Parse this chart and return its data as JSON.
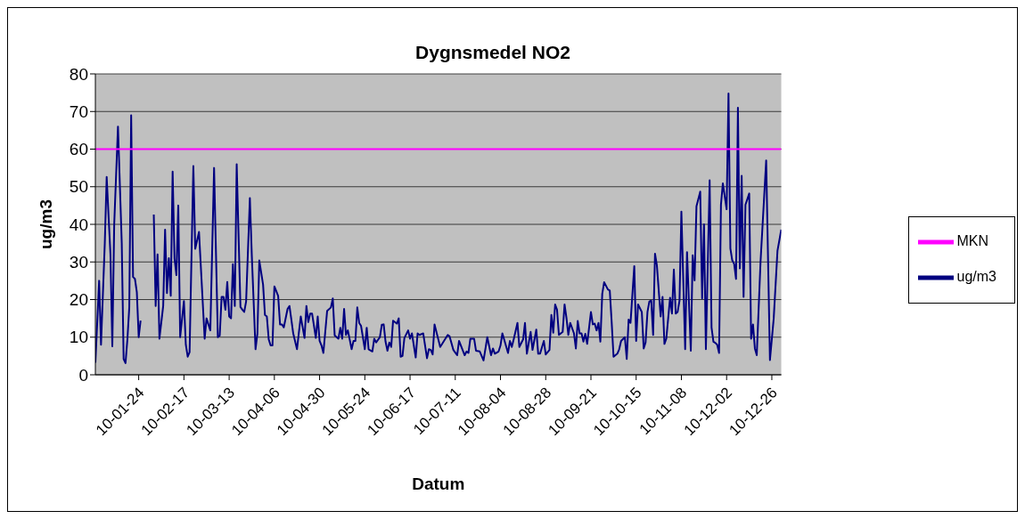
{
  "chart_data": {
    "type": "line",
    "title": "Dygnsmedel NO2",
    "xlabel": "Datum",
    "ylabel": "ug/m3",
    "ylim": [
      0,
      80
    ],
    "yticks": [
      0,
      10,
      20,
      30,
      40,
      50,
      60,
      70,
      80
    ],
    "xlim": [
      "2010-01-01",
      "2010-12-31"
    ],
    "xticks": [
      {
        "value": "2010-01-24",
        "label": "10-01-24"
      },
      {
        "value": "2010-02-17",
        "label": "10-02-17"
      },
      {
        "value": "2010-03-13",
        "label": "10-03-13"
      },
      {
        "value": "2010-04-06",
        "label": "10-04-06"
      },
      {
        "value": "2010-04-30",
        "label": "10-04-30"
      },
      {
        "value": "2010-05-24",
        "label": "10-05-24"
      },
      {
        "value": "2010-06-17",
        "label": "10-06-17"
      },
      {
        "value": "2010-07-11",
        "label": "10-07-11"
      },
      {
        "value": "2010-08-04",
        "label": "10-08-04"
      },
      {
        "value": "2010-08-28",
        "label": "10-08-28"
      },
      {
        "value": "2010-09-21",
        "label": "10-09-21"
      },
      {
        "value": "2010-10-15",
        "label": "10-10-15"
      },
      {
        "value": "2010-11-08",
        "label": "10-11-08"
      },
      {
        "value": "2010-12-02",
        "label": "10-12-02"
      },
      {
        "value": "2010-12-26",
        "label": "10-12-26"
      }
    ],
    "grid": "y",
    "legend": "right",
    "marker": "none",
    "line_style": "solid",
    "series": [
      {
        "name": "ug/m3",
        "color": "#000080",
        "x": [
          "2010-01-01",
          "2010-01-03",
          "2010-01-04",
          "2010-01-06",
          "2010-01-07",
          "2010-01-09",
          "2010-01-10",
          "2010-01-11",
          "2010-01-13",
          "2010-01-15",
          "2010-01-16",
          "2010-01-17",
          "2010-01-18",
          "2010-01-19",
          "2010-01-20",
          "2010-01-21",
          "2010-01-22",
          "2010-01-23",
          "2010-01-24",
          "2010-01-25",
          "2010-01-26",
          "2010-02-01",
          "2010-02-02",
          "2010-02-03",
          "2010-02-04",
          "2010-02-06",
          "2010-02-07",
          "2010-02-08",
          "2010-02-09",
          "2010-02-10",
          "2010-02-11",
          "2010-02-12",
          "2010-02-13",
          "2010-02-14",
          "2010-02-15",
          "2010-02-17",
          "2010-02-18",
          "2010-02-19",
          "2010-02-20",
          "2010-02-21",
          "2010-02-22",
          "2010-02-23",
          "2010-02-25",
          "2010-02-28",
          "2010-03-01",
          "2010-03-02",
          "2010-03-03",
          "2010-03-05",
          "2010-03-07",
          "2010-03-08",
          "2010-03-09",
          "2010-03-10",
          "2010-03-11",
          "2010-03-12",
          "2010-03-13",
          "2010-03-14",
          "2010-03-15",
          "2010-03-16",
          "2010-03-17",
          "2010-03-19",
          "2010-03-20",
          "2010-03-21",
          "2010-03-22",
          "2010-03-24",
          "2010-03-25",
          "2010-03-27",
          "2010-03-28",
          "2010-03-29",
          "2010-03-31",
          "2010-04-01",
          "2010-04-02",
          "2010-04-03",
          "2010-04-04",
          "2010-04-05",
          "2010-04-06",
          "2010-04-08",
          "2010-04-09",
          "2010-04-10",
          "2010-04-11",
          "2010-04-13",
          "2010-04-14",
          "2010-04-15",
          "2010-04-16",
          "2010-04-18",
          "2010-04-19",
          "2010-04-20",
          "2010-04-22",
          "2010-04-23",
          "2010-04-24",
          "2010-04-25",
          "2010-04-26",
          "2010-04-28",
          "2010-04-29",
          "2010-04-30",
          "2010-05-01",
          "2010-05-02",
          "2010-05-04",
          "2010-05-06",
          "2010-05-07",
          "2010-05-08",
          "2010-05-10",
          "2010-05-11",
          "2010-05-12",
          "2010-05-13",
          "2010-05-14",
          "2010-05-15",
          "2010-05-17",
          "2010-05-18",
          "2010-05-19",
          "2010-05-20",
          "2010-05-21",
          "2010-05-22",
          "2010-05-24",
          "2010-05-25",
          "2010-05-26",
          "2010-05-28",
          "2010-05-29",
          "2010-05-30",
          "2010-06-01",
          "2010-06-02",
          "2010-06-03",
          "2010-06-04",
          "2010-06-05",
          "2010-06-06",
          "2010-06-07",
          "2010-06-08",
          "2010-06-10",
          "2010-06-11",
          "2010-06-12",
          "2010-06-13",
          "2010-06-14",
          "2010-06-16",
          "2010-06-17",
          "2010-06-18",
          "2010-06-20",
          "2010-06-21",
          "2010-06-22",
          "2010-06-24",
          "2010-06-26",
          "2010-06-27",
          "2010-06-28",
          "2010-06-29",
          "2010-06-30",
          "2010-07-02",
          "2010-07-03",
          "2010-07-05",
          "2010-07-07",
          "2010-07-08",
          "2010-07-10",
          "2010-07-12",
          "2010-07-13",
          "2010-07-16",
          "2010-07-17",
          "2010-07-18",
          "2010-07-19",
          "2010-07-21",
          "2010-07-22",
          "2010-07-24",
          "2010-07-26",
          "2010-07-28",
          "2010-07-30",
          "2010-07-31",
          "2010-08-01",
          "2010-08-03",
          "2010-08-04",
          "2010-08-05",
          "2010-08-06",
          "2010-08-08",
          "2010-08-09",
          "2010-08-10",
          "2010-08-11",
          "2010-08-13",
          "2010-08-14",
          "2010-08-16",
          "2010-08-17",
          "2010-08-18",
          "2010-08-20",
          "2010-08-21",
          "2010-08-23",
          "2010-08-24",
          "2010-08-25",
          "2010-08-27",
          "2010-08-28",
          "2010-08-30",
          "2010-08-31",
          "2010-09-01",
          "2010-09-02",
          "2010-09-03",
          "2010-09-04",
          "2010-09-06",
          "2010-09-07",
          "2010-09-08",
          "2010-09-09",
          "2010-09-10",
          "2010-09-12",
          "2010-09-13",
          "2010-09-14",
          "2010-09-15",
          "2010-09-16",
          "2010-09-17",
          "2010-09-18",
          "2010-09-19",
          "2010-09-21",
          "2010-09-22",
          "2010-09-23",
          "2010-09-24",
          "2010-09-25",
          "2010-09-26",
          "2010-09-27",
          "2010-09-28",
          "2010-09-30",
          "2010-10-01",
          "2010-10-02",
          "2010-10-03",
          "2010-10-05",
          "2010-10-06",
          "2010-10-07",
          "2010-10-09",
          "2010-10-10",
          "2010-10-11",
          "2010-10-12",
          "2010-10-14",
          "2010-10-15",
          "2010-10-16",
          "2010-10-18",
          "2010-10-19",
          "2010-10-20",
          "2010-10-21",
          "2010-10-22",
          "2010-10-23",
          "2010-10-24",
          "2010-10-25",
          "2010-10-26",
          "2010-10-28",
          "2010-10-29",
          "2010-10-30",
          "2010-10-31",
          "2010-11-02",
          "2010-11-03",
          "2010-11-04",
          "2010-11-05",
          "2010-11-06",
          "2010-11-07",
          "2010-11-08",
          "2010-11-10",
          "2010-11-11",
          "2010-11-13",
          "2010-11-14",
          "2010-11-15",
          "2010-11-16",
          "2010-11-18",
          "2010-11-19",
          "2010-11-20",
          "2010-11-21",
          "2010-11-23",
          "2010-11-24",
          "2010-11-25",
          "2010-11-26",
          "2010-11-27",
          "2010-11-28",
          "2010-11-29",
          "2010-11-30",
          "2010-12-02",
          "2010-12-03",
          "2010-12-04",
          "2010-12-05",
          "2010-12-06",
          "2010-12-07",
          "2010-12-08",
          "2010-12-09",
          "2010-12-10",
          "2010-12-11",
          "2010-12-12",
          "2010-12-14",
          "2010-12-15",
          "2010-12-16",
          "2010-12-17",
          "2010-12-18",
          "2010-12-20",
          "2010-12-23",
          "2010-12-25",
          "2010-12-27",
          "2010-12-29",
          "2010-12-31"
        ],
        "values": [
          3.2,
          25,
          8,
          35,
          52.6,
          32,
          7.6,
          40,
          66,
          35,
          4.2,
          3.1,
          9.4,
          18,
          69,
          26,
          25.5,
          22,
          10,
          14.4,
          null,
          42.6,
          18.3,
          32,
          9.6,
          18.3,
          38.6,
          21.7,
          31,
          21,
          54,
          31,
          26.5,
          45,
          10,
          19.6,
          8,
          4.8,
          6,
          31,
          55.5,
          33.5,
          38,
          9.6,
          15,
          13.4,
          11.8,
          55,
          10,
          10.4,
          20.7,
          20.7,
          17.3,
          24.7,
          15.5,
          15,
          29.4,
          18.3,
          56,
          18,
          17.3,
          16.7,
          19.5,
          47,
          32,
          6.8,
          11,
          30.4,
          24,
          15.9,
          15.5,
          9.4,
          7.8,
          7.8,
          23.5,
          21,
          13.4,
          13.4,
          12.6,
          17.5,
          18.3,
          14.7,
          11,
          6.8,
          11.2,
          15.5,
          9.8,
          18.3,
          14,
          16.3,
          16.3,
          9.8,
          15.5,
          9,
          7.8,
          5.8,
          17,
          17.9,
          20.3,
          10.5,
          9.6,
          12.5,
          9.6,
          17.5,
          10.6,
          11.8,
          6.8,
          9,
          9,
          17.9,
          13.8,
          13,
          6.8,
          12.5,
          6.8,
          6.2,
          9.6,
          8.6,
          10,
          13.3,
          13.4,
          8.8,
          6.4,
          8.6,
          7.4,
          14.4,
          13.6,
          15,
          4.8,
          5,
          9.8,
          11.8,
          9.6,
          11,
          4.6,
          11,
          10.6,
          11,
          4.4,
          6.8,
          6.6,
          5.4,
          13.4,
          9.4,
          7.4,
          9,
          10.6,
          10.2,
          6.6,
          5.2,
          9,
          5.2,
          6.2,
          5.8,
          9.6,
          9.6,
          6.4,
          6.2,
          3.8,
          10,
          5.2,
          7,
          5.6,
          6.2,
          7.8,
          11,
          9.3,
          5.8,
          9,
          7.4,
          9.4,
          13.8,
          7.4,
          9.4,
          13.8,
          5.6,
          11.4,
          6.6,
          12,
          5.6,
          5.6,
          9,
          5.4,
          6.6,
          15.9,
          11.2,
          18.7,
          17.3,
          10.6,
          11.4,
          18.7,
          15.2,
          10.6,
          13.8,
          11,
          7,
          14.3,
          11,
          11,
          8.8,
          10.9,
          8.2,
          16.7,
          13.4,
          13.6,
          11.8,
          13.8,
          8.8,
          21.5,
          24.6,
          22.7,
          22.4,
          14,
          4.8,
          5.6,
          6.8,
          9,
          10,
          4.2,
          14.7,
          13.8,
          28.9,
          9,
          18.7,
          16.7,
          7,
          8.6,
          16.7,
          19.5,
          19.7,
          10.6,
          32.2,
          29.1,
          15.5,
          20.7,
          8.2,
          9.6,
          20.5,
          16.3,
          28,
          16.3,
          16.7,
          19.7,
          43.4,
          6.8,
          32.6,
          6.4,
          31.8,
          25.1,
          44.8,
          48.7,
          20.3,
          40,
          6.8,
          51.7,
          12.6,
          8.8,
          8.5,
          8,
          5.8,
          45.2,
          50.9,
          44,
          74.8,
          33.6,
          30.4,
          29.5,
          25.5,
          71,
          28.3,
          52.9,
          20.7,
          45.2,
          48.2,
          9.6,
          13.4,
          7,
          5.2,
          30,
          57,
          3.9,
          15,
          33,
          38.6
        ]
      },
      {
        "name": "MKN",
        "color": "#ff00ff",
        "x": [
          "2010-01-01",
          "2010-12-31"
        ],
        "values": [
          60,
          60
        ]
      }
    ]
  }
}
